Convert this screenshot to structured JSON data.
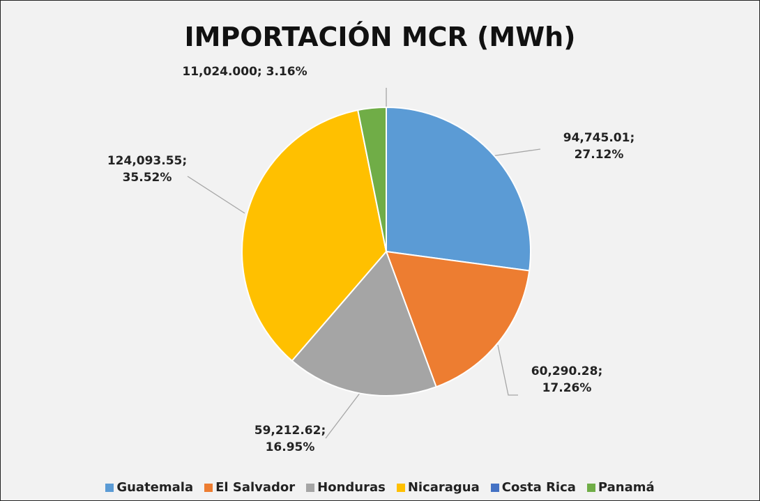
{
  "chart_data": {
    "type": "pie",
    "title": "IMPORTACIÓN MCR (MWh)",
    "categories": [
      "Guatemala",
      "El Salvador",
      "Honduras",
      "Nicaragua",
      "Costa Rica",
      "Panamá"
    ],
    "values": [
      94745.01,
      60290.28,
      59212.62,
      124093.55,
      0,
      11024.0
    ],
    "value_labels": [
      "94,745.01; 27.12%",
      "60,290.28; 17.26%",
      "59,212.62; 16.95%",
      "124,093.55; 35.52%",
      null,
      "11,024.000; 3.16%"
    ],
    "colors": [
      "#5b9bd5",
      "#ed7d31",
      "#a5a5a5",
      "#ffc000",
      "#4472c4",
      "#70ad47"
    ],
    "legend": "bottom"
  }
}
